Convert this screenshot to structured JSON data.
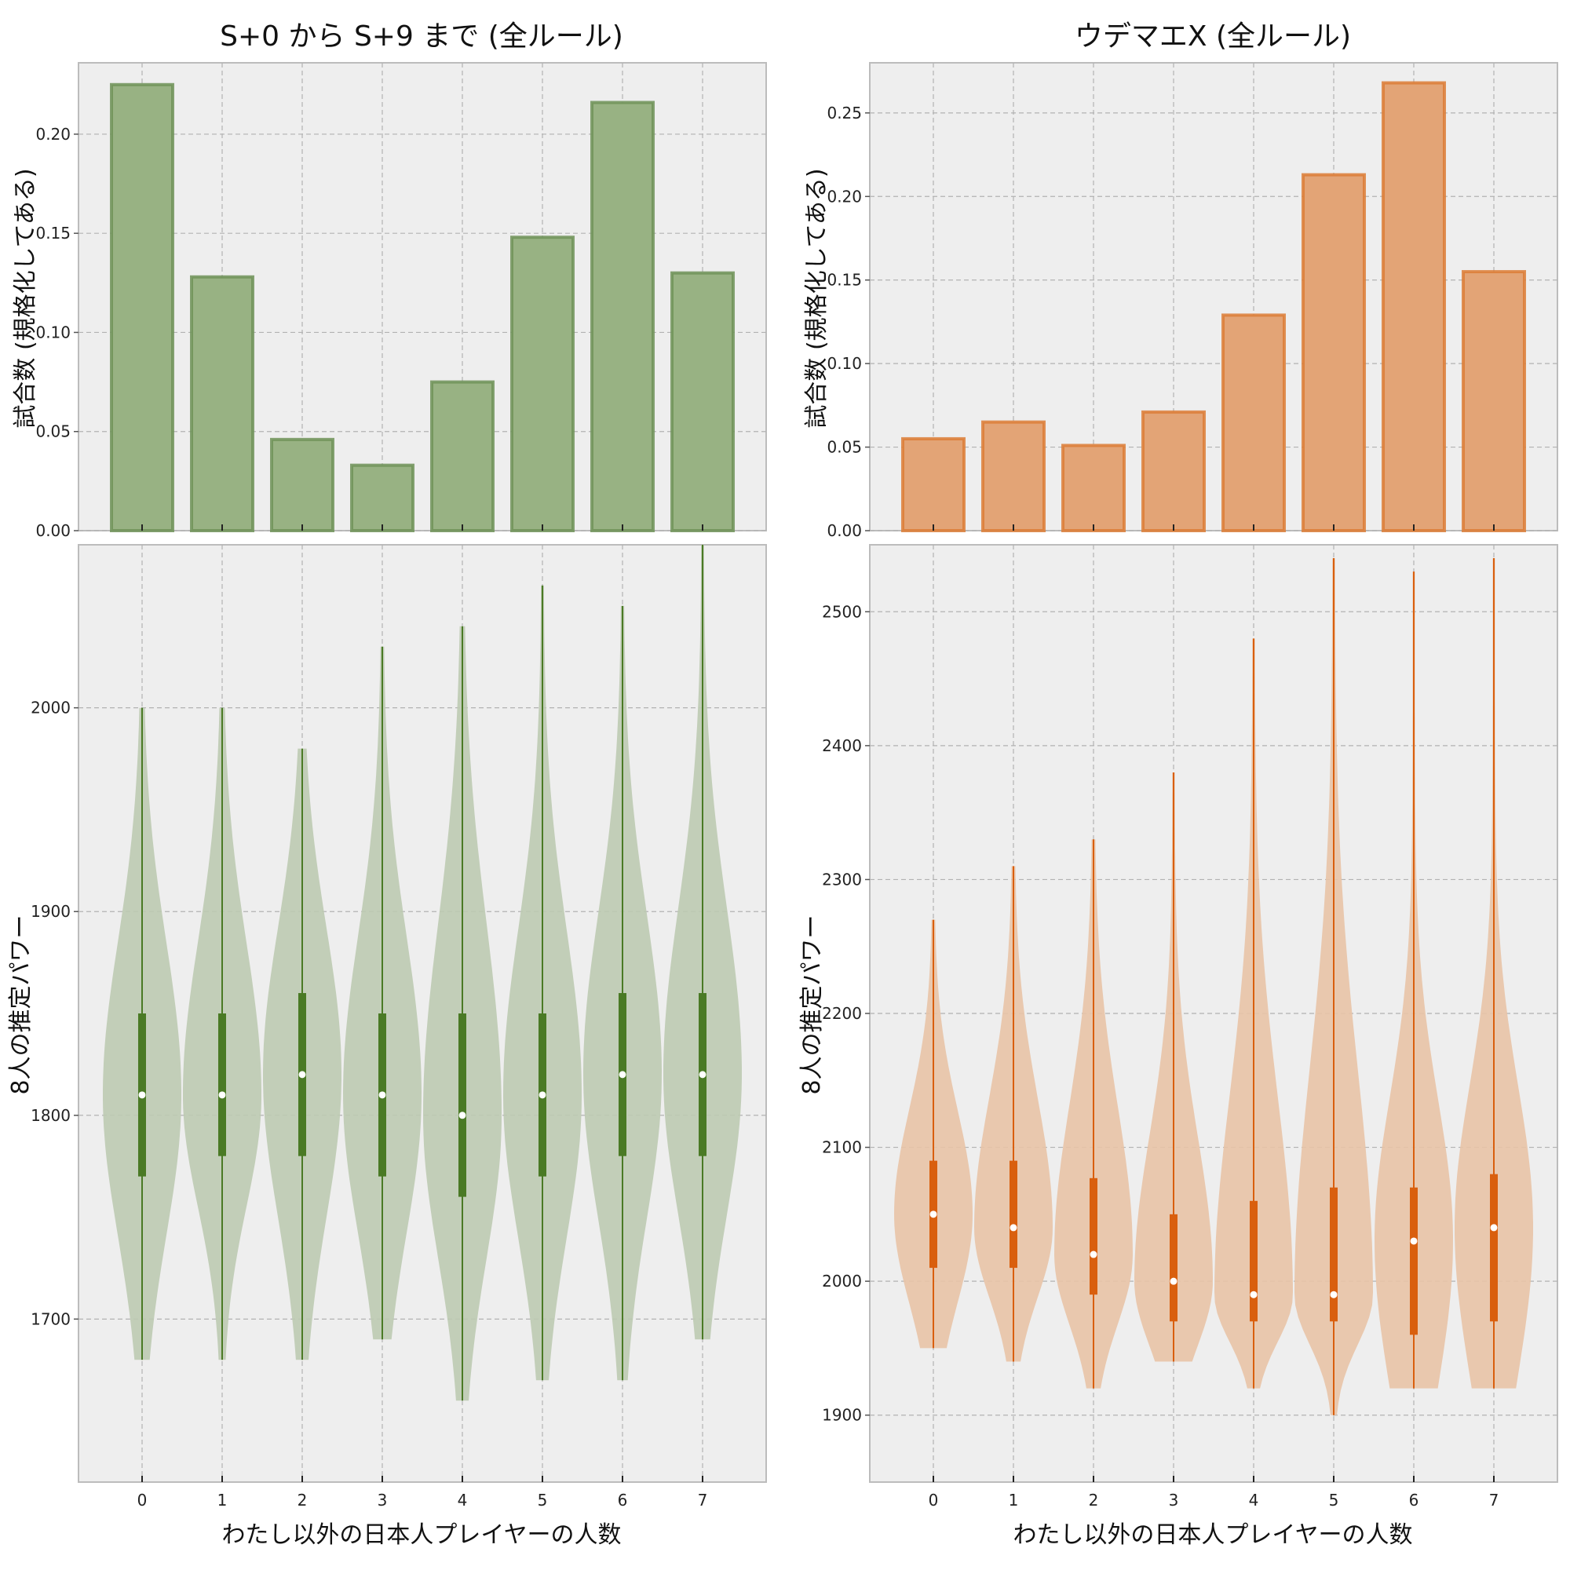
{
  "chart_data": [
    {
      "type": "bar",
      "title": "S+0 から S+9 まで (全ルール)",
      "xlabel": "",
      "ylabel": "試合数 (規格化してある)",
      "categories": [
        "0",
        "1",
        "2",
        "3",
        "4",
        "5",
        "6",
        "7"
      ],
      "values": [
        0.225,
        0.128,
        0.046,
        0.033,
        0.075,
        0.148,
        0.216,
        0.13
      ],
      "ylim": [
        0,
        0.236
      ],
      "yticks": [
        "0.00",
        "0.05",
        "0.10",
        "0.15",
        "0.20"
      ],
      "grid": true,
      "colors": {
        "fill": "#98b283",
        "edge": "#6f9258"
      }
    },
    {
      "type": "bar",
      "title": "ウデマエX (全ルール)",
      "xlabel": "",
      "ylabel": "試合数 (規格化してある)",
      "categories": [
        "0",
        "1",
        "2",
        "3",
        "4",
        "5",
        "6",
        "7"
      ],
      "values": [
        0.055,
        0.065,
        0.051,
        0.071,
        0.129,
        0.213,
        0.268,
        0.155
      ],
      "ylim": [
        0,
        0.28
      ],
      "yticks": [
        "0.00",
        "0.05",
        "0.10",
        "0.15",
        "0.20",
        "0.25"
      ],
      "grid": true,
      "colors": {
        "fill": "#e3a476",
        "edge": "#dc7c36"
      }
    },
    {
      "type": "violin",
      "title": "",
      "xlabel": "わたし以外の日本人プレイヤーの人数",
      "ylabel": "8人の推定パワー",
      "categories": [
        "0",
        "1",
        "2",
        "3",
        "4",
        "5",
        "6",
        "7"
      ],
      "ylim": [
        1620,
        2080
      ],
      "yticks": [
        "1700",
        "1800",
        "1900",
        "2000"
      ],
      "grid": true,
      "colors": {
        "body": "#bccab1",
        "line": "#4a7a25",
        "median": "#ffffff"
      },
      "series": [
        {
          "category": "0",
          "min": 1680,
          "q1": 1770,
          "median": 1810,
          "q3": 1850,
          "max": 2000
        },
        {
          "category": "1",
          "min": 1680,
          "q1": 1780,
          "median": 1810,
          "q3": 1850,
          "max": 2000
        },
        {
          "category": "2",
          "min": 1680,
          "q1": 1780,
          "median": 1820,
          "q3": 1860,
          "max": 1980
        },
        {
          "category": "3",
          "min": 1690,
          "q1": 1770,
          "median": 1810,
          "q3": 1850,
          "max": 2030
        },
        {
          "category": "4",
          "min": 1660,
          "q1": 1760,
          "median": 1800,
          "q3": 1850,
          "max": 2040
        },
        {
          "category": "5",
          "min": 1670,
          "q1": 1770,
          "median": 1810,
          "q3": 1850,
          "max": 2060
        },
        {
          "category": "6",
          "min": 1670,
          "q1": 1780,
          "median": 1820,
          "q3": 1860,
          "max": 2050
        },
        {
          "category": "7",
          "min": 1690,
          "q1": 1780,
          "median": 1820,
          "q3": 1860,
          "max": 2080
        }
      ]
    },
    {
      "type": "violin",
      "title": "",
      "xlabel": "わたし以外の日本人プレイヤーの人数",
      "ylabel": "8人の推定パワー",
      "categories": [
        "0",
        "1",
        "2",
        "3",
        "4",
        "5",
        "6",
        "7"
      ],
      "ylim": [
        1850,
        2550
      ],
      "yticks": [
        "1900",
        "2000",
        "2100",
        "2200",
        "2300",
        "2400",
        "2500"
      ],
      "grid": true,
      "colors": {
        "body": "#e8c3a6",
        "line": "#d95f0e",
        "median": "#ffffff"
      },
      "series": [
        {
          "category": "0",
          "min": 1950,
          "q1": 2010,
          "median": 2050,
          "q3": 2090,
          "max": 2270
        },
        {
          "category": "1",
          "min": 1940,
          "q1": 2010,
          "median": 2040,
          "q3": 2090,
          "max": 2310
        },
        {
          "category": "2",
          "min": 1920,
          "q1": 1990,
          "median": 2020,
          "q3": 2077,
          "max": 2330
        },
        {
          "category": "3",
          "min": 1940,
          "q1": 1970,
          "median": 2000,
          "q3": 2050,
          "max": 2380
        },
        {
          "category": "4",
          "min": 1920,
          "q1": 1970,
          "median": 1990,
          "q3": 2060,
          "max": 2480
        },
        {
          "category": "5",
          "min": 1900,
          "q1": 1970,
          "median": 1990,
          "q3": 2070,
          "max": 2540
        },
        {
          "category": "6",
          "min": 1920,
          "q1": 1960,
          "median": 2030,
          "q3": 2070,
          "max": 2530
        },
        {
          "category": "7",
          "min": 1920,
          "q1": 1970,
          "median": 2040,
          "q3": 2080,
          "max": 2540
        }
      ]
    }
  ]
}
